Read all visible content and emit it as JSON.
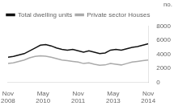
{
  "chart_data": {
    "type": "line",
    "ylabel": "no.",
    "x": [
      0,
      2.769230769230769,
      5.538461538461538,
      8.307692307692308,
      11.076923076923077,
      13.846153846153847,
      16.615384615384617,
      19.384615384615383,
      22.153846153846153,
      24.923076923076923,
      27.692307692307693,
      30.46153846153846,
      33.23076923076923,
      36,
      38.76923076923077,
      41.53846153846154,
      44.30769230769231,
      47.07692307692308,
      49.84615384615385,
      52.61538461538461,
      55.38461538461539,
      58.15384615384615,
      60.92307692307692,
      63.69230769230769,
      66.46153846153847,
      69.23076923076923,
      72
    ],
    "series": [
      {
        "name": "Total dwelling units",
        "color": "#111111",
        "values": [
          3600,
          3700,
          3900,
          4100,
          4500,
          4900,
          5300,
          5400,
          5200,
          4900,
          4700,
          4600,
          4700,
          4500,
          4300,
          4500,
          4300,
          4100,
          4200,
          4600,
          4700,
          4600,
          4800,
          5000,
          5100,
          5300,
          5500
        ]
      },
      {
        "name": "Private sector Houses",
        "color": "#aaaaaa",
        "values": [
          2700,
          2800,
          3000,
          3200,
          3500,
          3700,
          3800,
          3750,
          3600,
          3400,
          3200,
          3100,
          3000,
          2900,
          2700,
          2800,
          2600,
          2450,
          2500,
          2700,
          2600,
          2500,
          2700,
          2900,
          3000,
          3100,
          3200
        ]
      }
    ],
    "xlim": [
      0,
      72
    ],
    "xticks": [
      {
        "value": 0,
        "label": "Nov\n2008"
      },
      {
        "value": 18,
        "label": "May\n2010"
      },
      {
        "value": 36,
        "label": "Nov\n2011"
      },
      {
        "value": 54,
        "label": "May\n2013"
      },
      {
        "value": 72,
        "label": "Nov\n2014"
      }
    ],
    "ylim": [
      0,
      8000
    ],
    "yticks": [
      0,
      2000,
      4000,
      6000,
      8000
    ],
    "grid": false,
    "legend": "upper left"
  }
}
